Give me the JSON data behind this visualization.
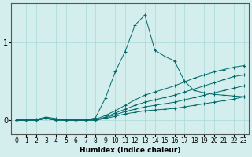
{
  "title": "",
  "xlabel": "Humidex (Indice chaleur)",
  "bg_color": "#d4eeee",
  "line_color": "#006868",
  "grid_color": "#a8d8d8",
  "xlim": [
    -0.5,
    23.5
  ],
  "ylim": [
    -0.18,
    1.5
  ],
  "yticks": [
    0,
    1
  ],
  "xticks": [
    0,
    1,
    2,
    3,
    4,
    5,
    6,
    7,
    8,
    9,
    10,
    11,
    12,
    13,
    14,
    15,
    16,
    17,
    18,
    19,
    20,
    21,
    22,
    23
  ],
  "lines": [
    [
      0,
      0,
      1,
      0,
      2,
      0,
      3,
      0.02,
      4,
      0,
      5,
      0,
      6,
      0,
      7,
      0,
      8,
      0,
      9,
      0.02,
      10,
      0.05,
      11,
      0.08,
      12,
      0.1,
      13,
      0.12,
      14,
      0.13,
      15,
      0.14,
      16,
      0.15,
      17,
      0.17,
      18,
      0.19,
      19,
      0.21,
      20,
      0.23,
      21,
      0.25,
      22,
      0.27,
      23,
      0.3
    ],
    [
      0,
      0,
      1,
      0,
      2,
      0,
      3,
      0.02,
      4,
      0,
      5,
      0,
      6,
      0,
      7,
      0,
      8,
      0,
      9,
      0.03,
      10,
      0.07,
      11,
      0.11,
      12,
      0.14,
      13,
      0.17,
      14,
      0.19,
      15,
      0.21,
      16,
      0.23,
      17,
      0.26,
      18,
      0.29,
      19,
      0.32,
      20,
      0.35,
      21,
      0.38,
      22,
      0.41,
      23,
      0.44
    ],
    [
      0,
      0,
      1,
      0,
      2,
      0,
      3,
      0.02,
      4,
      0,
      5,
      0,
      6,
      0,
      7,
      0,
      8,
      0,
      9,
      0.04,
      10,
      0.09,
      11,
      0.14,
      12,
      0.19,
      13,
      0.23,
      14,
      0.26,
      15,
      0.29,
      16,
      0.32,
      17,
      0.36,
      18,
      0.4,
      19,
      0.44,
      20,
      0.48,
      21,
      0.52,
      22,
      0.56,
      23,
      0.58
    ],
    [
      0,
      0,
      1,
      0,
      2,
      0,
      3,
      0.03,
      4,
      0.01,
      5,
      0,
      6,
      0,
      7,
      0,
      8,
      0.01,
      9,
      0.06,
      10,
      0.12,
      11,
      0.19,
      12,
      0.26,
      13,
      0.32,
      14,
      0.36,
      15,
      0.4,
      16,
      0.44,
      17,
      0.49,
      18,
      0.54,
      19,
      0.58,
      20,
      0.62,
      21,
      0.65,
      22,
      0.68,
      23,
      0.7
    ],
    [
      0,
      0,
      1,
      0,
      2,
      0.01,
      3,
      0.04,
      4,
      0.02,
      5,
      0,
      6,
      0,
      7,
      0,
      8,
      0.03,
      9,
      0.28,
      10,
      0.62,
      11,
      0.88,
      12,
      1.22,
      13,
      1.35,
      14,
      0.9,
      15,
      0.82,
      16,
      0.76,
      17,
      0.5,
      18,
      0.38,
      19,
      0.35,
      20,
      0.33,
      21,
      0.32,
      22,
      0.31,
      23,
      0.3
    ]
  ]
}
